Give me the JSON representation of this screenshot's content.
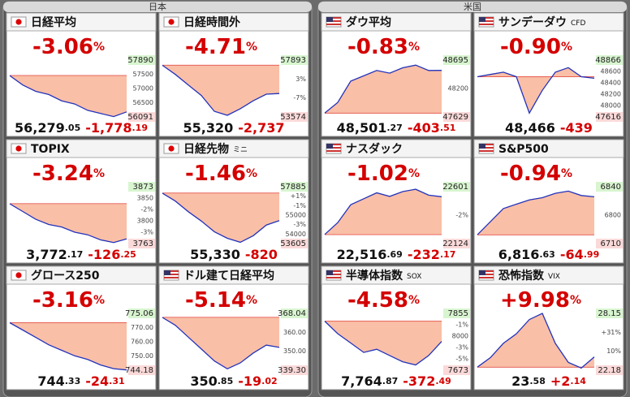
{
  "color": "#d40000",
  "groups": [
    {
      "title": "日本",
      "panels": [
        {
          "name": "日経平均",
          "flag": "jp",
          "pct": "-3.06",
          "unit": "%",
          "price": "56,279",
          "price_dec": ".05",
          "change": "-1,778",
          "change_dec": ".19",
          "high": 57890,
          "low": 56091,
          "mids": [
            "57500",
            "57000",
            "56500"
          ],
          "line": [
            57400,
            57100,
            56900,
            56800,
            56600,
            56500,
            56300,
            56200,
            56100,
            56250
          ]
        },
        {
          "name": "日経時間外",
          "flag": "jp",
          "pct": "-4.71",
          "unit": "%",
          "price": "55,320",
          "change": "-2,737",
          "high": 57893,
          "low": 53574,
          "mids": [
            "3%",
            "-7%"
          ],
          "line": [
            57500,
            56800,
            56000,
            55200,
            54000,
            53700,
            54200,
            54800,
            55300,
            55350
          ]
        },
        {
          "name": "TOPIX",
          "flag": "jp",
          "pct": "-3.24",
          "unit": "%",
          "price": "3,772",
          "price_dec": ".17",
          "change": "-126",
          "change_dec": ".25",
          "high": 3873,
          "low": 3763,
          "mids": [
            "3850",
            "-2%",
            "3800",
            "-3%"
          ],
          "line": [
            3840,
            3825,
            3810,
            3800,
            3795,
            3785,
            3780,
            3770,
            3765,
            3772
          ]
        },
        {
          "name": "日経先物",
          "sub": "ミニ",
          "flag": "jp",
          "pct": "-1.46",
          "unit": "%",
          "price": "55,330",
          "change": "-820",
          "high": 57885,
          "low": 53605,
          "mids": [
            "+1%",
            "-1%",
            "55000",
            "-3%",
            "54000"
          ],
          "line": [
            57400,
            56800,
            56000,
            55300,
            54500,
            54000,
            53700,
            54200,
            55000,
            55330
          ]
        },
        {
          "name": "グロース250",
          "flag": "jp",
          "pct": "-3.16",
          "unit": "%",
          "price": "744",
          "price_dec": ".33",
          "change": "-24",
          "change_dec": ".31",
          "high": 775.06,
          "low": 744.18,
          "mids": [
            "770.00",
            "760.00",
            "750.00"
          ],
          "line": [
            770,
            766,
            762,
            758,
            755,
            752,
            750,
            747,
            745,
            744.33
          ]
        },
        {
          "name": "ドル建て日経平均",
          "flag": "us",
          "pct": "-5.14",
          "unit": "%",
          "price": "350",
          "price_dec": ".85",
          "change": "-19",
          "change_dec": ".02",
          "high": 368.04,
          "low": {
            "value": 339.3,
            "label": "339.30"
          },
          "mids": [
            "360.00",
            "350.00"
          ],
          "line": [
            366,
            362,
            356,
            350,
            344,
            340,
            343,
            348,
            352,
            350.85
          ]
        }
      ]
    },
    {
      "title": "米国",
      "panels": [
        {
          "name": "ダウ平均",
          "flag": "us",
          "pct": "-0.83",
          "unit": "%",
          "price": "48,501",
          "price_dec": ".27",
          "change": "-403",
          "change_dec": ".51",
          "high": 48695,
          "low": 47629,
          "mids": [
            "48200"
          ],
          "line": [
            47700,
            47900,
            48300,
            48400,
            48500,
            48450,
            48550,
            48600,
            48500,
            48501
          ]
        },
        {
          "name": "サンデーダウ",
          "sub": "CFD",
          "flag": "us",
          "pct": "-0.90",
          "unit": "%",
          "price": "48,466",
          "change": "-439",
          "high": 48866,
          "low": 47616,
          "mids": [
            "48600",
            "48400",
            "48200",
            "48000"
          ],
          "line": [
            48500,
            48550,
            48600,
            48500,
            47700,
            48200,
            48600,
            48700,
            48500,
            48466
          ]
        },
        {
          "name": "ナスダック",
          "flag": "us",
          "pct": "-1.02",
          "unit": "%",
          "price": "22,516",
          "price_dec": ".69",
          "change": "-232",
          "change_dec": ".17",
          "high": 22601,
          "low": 22124,
          "mids": [
            "-2%"
          ],
          "line": [
            22200,
            22300,
            22450,
            22500,
            22550,
            22520,
            22560,
            22580,
            22530,
            22517
          ]
        },
        {
          "name": "S&P500",
          "flag": "us",
          "pct": "-0.94",
          "unit": "%",
          "price": "6,816",
          "price_dec": ".63",
          "change": "-64",
          "change_dec": ".99",
          "high": 6840,
          "low": 6710,
          "mids": [
            "6800"
          ],
          "line": [
            6730,
            6760,
            6790,
            6800,
            6810,
            6815,
            6825,
            6830,
            6820,
            6817
          ]
        },
        {
          "name": "半導体指数",
          "sub": "SOX",
          "flag": "us",
          "pct": "-4.58",
          "unit": "%",
          "price": "7,764",
          "price_dec": ".87",
          "change": "-372",
          "change_dec": ".49",
          "high": 7855,
          "low": 7673,
          "mids": [
            "-1%",
            "8000",
            "-3%",
            "-5%"
          ],
          "line": [
            7830,
            7790,
            7760,
            7730,
            7740,
            7720,
            7700,
            7690,
            7720,
            7765
          ]
        },
        {
          "name": "恐怖指数",
          "sub": "VIX",
          "flag": "us",
          "pct": "+9.98",
          "unit": "%",
          "price": "23",
          "price_dec": ".58",
          "change": "+2",
          "change_dec": ".14",
          "high": 28.15,
          "low": 22.18,
          "mids": [
            "+31%",
            "10%"
          ],
          "line": [
            22.5,
            23.5,
            25,
            26,
            27.5,
            28.15,
            25,
            23,
            22.4,
            23.58
          ]
        }
      ]
    }
  ]
}
